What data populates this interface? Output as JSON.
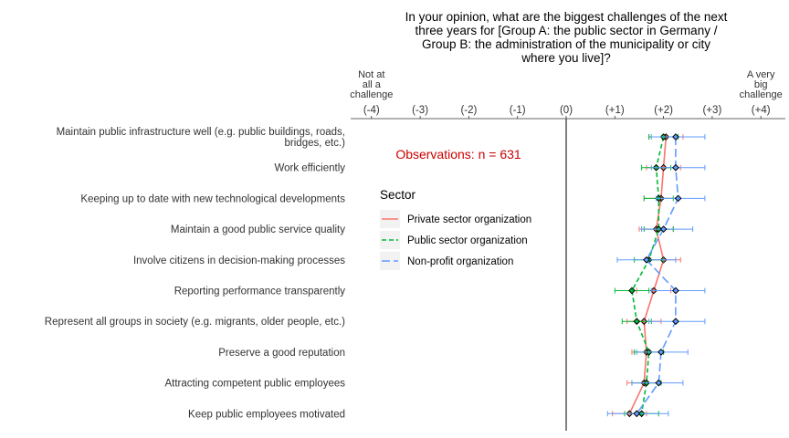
{
  "chart_data": {
    "type": "scatter",
    "title_lines": [
      "In your opinion, what are the biggest challenges of the next",
      "three years for [Group A: the public sector in Germany /",
      "Group B: the administration of the municipality or city",
      "where you live]?"
    ],
    "xlim": [
      -4,
      4
    ],
    "x_ticks": [
      -4,
      -3,
      -2,
      -1,
      0,
      1,
      2,
      3,
      4
    ],
    "x_tick_labels": [
      "(-4)",
      "(-3)",
      "(-2)",
      "(-1)",
      "(0)",
      "(+1)",
      "(+2)",
      "(+3)",
      "(+4)"
    ],
    "x_end_label_left": [
      "Not at",
      "all a",
      "challenge"
    ],
    "x_end_label_right": [
      "A very",
      "big",
      "challenge"
    ],
    "categories": [
      [
        "Maintain public infrastructure well (e.g. public buildings, roads,",
        "bridges, etc.)"
      ],
      [
        "Work efficiently"
      ],
      [
        "Keeping up to date with new technological developments"
      ],
      [
        "Maintain a good public service quality"
      ],
      [
        "Involve citizens in decision-making processes"
      ],
      [
        "Reporting performance transparently"
      ],
      [
        "Represent all groups in society (e.g. migrants, older people, etc.)"
      ],
      [
        "Preserve a good reputation"
      ],
      [
        "Attracting competent public employees"
      ],
      [
        "Keep public employees motivated"
      ]
    ],
    "annotation": "Observations: n = 631",
    "annotation_color": "#cc0000",
    "legend": {
      "title": "Sector",
      "position": "left-inside"
    },
    "grid": false,
    "series": [
      {
        "name": "Private sector organization",
        "color": "#f8766d",
        "dash": "solid",
        "values": [
          2.05,
          2.0,
          1.95,
          1.85,
          2.0,
          1.8,
          1.6,
          1.65,
          1.6,
          1.3
        ],
        "ci_low": [
          1.7,
          1.65,
          1.6,
          1.5,
          1.7,
          1.45,
          1.25,
          1.35,
          1.25,
          0.95
        ],
        "ci_high": [
          2.4,
          2.35,
          2.3,
          2.2,
          2.35,
          2.15,
          1.95,
          1.95,
          1.95,
          1.65
        ]
      },
      {
        "name": "Public sector organization",
        "color": "#00ba38",
        "dash": "dashed",
        "values": [
          2.0,
          1.85,
          1.9,
          1.9,
          1.7,
          1.35,
          1.45,
          1.7,
          1.65,
          1.55
        ],
        "ci_low": [
          1.7,
          1.55,
          1.6,
          1.6,
          1.4,
          1.0,
          1.15,
          1.4,
          1.35,
          1.2
        ],
        "ci_high": [
          2.3,
          2.15,
          2.2,
          2.2,
          2.0,
          1.7,
          1.75,
          2.0,
          1.95,
          1.9
        ]
      },
      {
        "name": "Non-profit organization",
        "color": "#619cff",
        "dash": "longdash",
        "values": [
          2.25,
          2.25,
          2.3,
          2.0,
          1.65,
          2.25,
          2.25,
          1.95,
          1.9,
          1.45
        ],
        "ci_low": [
          1.75,
          1.75,
          1.85,
          1.55,
          1.05,
          1.75,
          1.7,
          1.45,
          1.35,
          0.85
        ],
        "ci_high": [
          2.85,
          2.85,
          2.85,
          2.6,
          2.25,
          2.85,
          2.85,
          2.5,
          2.4,
          2.1
        ]
      }
    ]
  }
}
